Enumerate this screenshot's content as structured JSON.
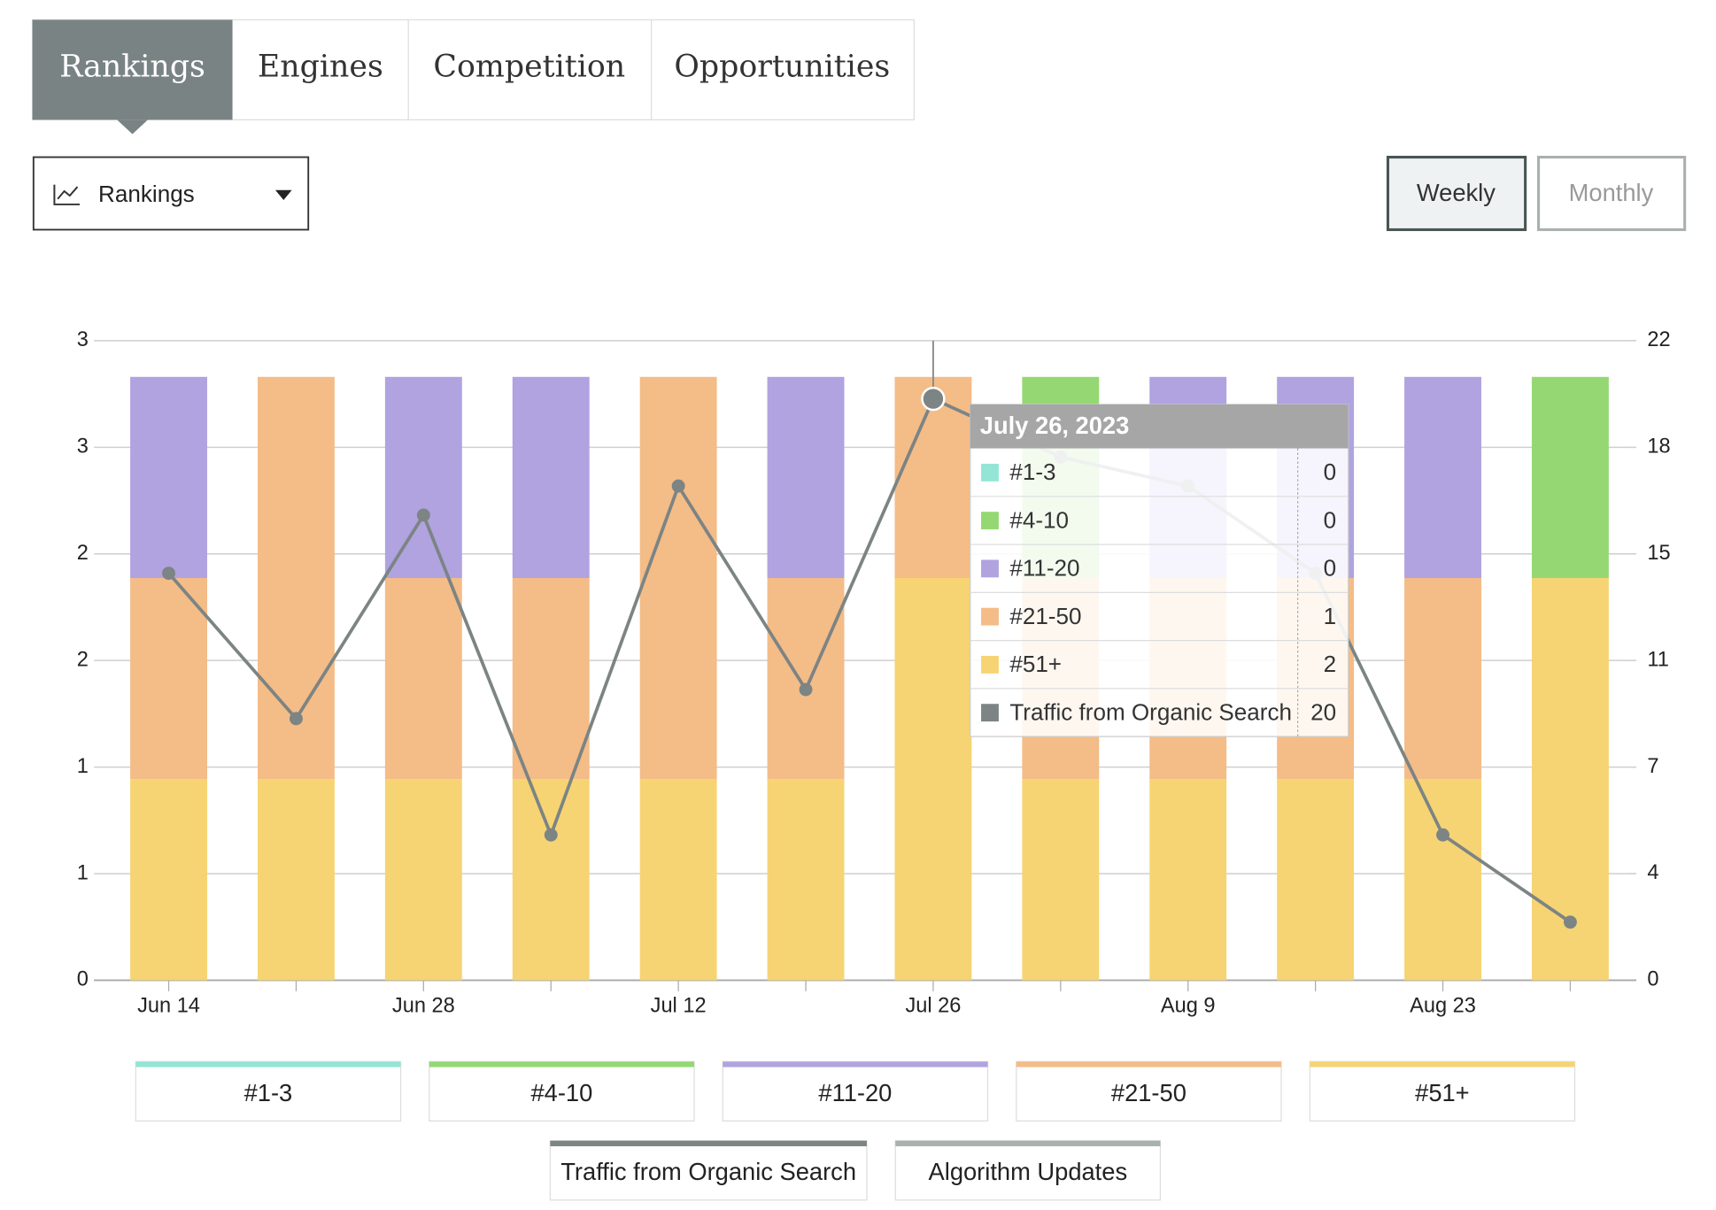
{
  "ui": {
    "tabs": [
      "Rankings",
      "Engines",
      "Competition",
      "Opportunities"
    ],
    "dropdown": "Rankings",
    "buttons": [
      "Weekly",
      "Monthly"
    ]
  },
  "chart_data": {
    "type": "bar",
    "categories": [
      "Jun 14",
      null,
      "Jun 28",
      null,
      "Jul 12",
      null,
      "Jul 26",
      null,
      "Aug 9",
      null,
      "Aug 23",
      null
    ],
    "series": [
      {
        "name": "#1-3",
        "color": "#93e5d6",
        "values": [
          0,
          0,
          0,
          0,
          0,
          0,
          0,
          0,
          0,
          0,
          0,
          0
        ]
      },
      {
        "name": "#4-10",
        "color": "#95d873",
        "values": [
          0,
          0,
          0,
          0,
          0,
          0,
          0,
          1,
          0,
          0,
          0,
          1
        ]
      },
      {
        "name": "#11-20",
        "color": "#b0a3e0",
        "values": [
          1,
          0,
          1,
          1,
          0,
          1,
          0,
          0,
          1,
          1,
          1,
          0
        ]
      },
      {
        "name": "#21-50",
        "color": "#f4bc87",
        "values": [
          1,
          2,
          1,
          1,
          2,
          1,
          1,
          1,
          1,
          1,
          1,
          0
        ]
      },
      {
        "name": "#51+",
        "color": "#f6d473",
        "values": [
          1,
          1,
          1,
          1,
          1,
          1,
          2,
          1,
          1,
          1,
          1,
          2
        ]
      },
      {
        "name": "Traffic from Organic Search",
        "color": "#7c8484",
        "type": "line",
        "axis": "y2",
        "values": [
          14,
          9,
          16,
          5,
          17,
          10,
          20,
          18,
          17,
          14,
          5,
          2
        ]
      }
    ],
    "legend_extra": [
      {
        "name": "Algorithm Updates",
        "color": "#a9b0b0"
      }
    ],
    "ylim": [
      0,
      3.18
    ],
    "yticks": [
      0,
      {
        "value": 0.53,
        "label": "1"
      },
      {
        "value": 1.06,
        "label": "1"
      },
      {
        "value": 1.59,
        "label": "2"
      },
      {
        "value": 2.12,
        "label": "2"
      },
      {
        "value": 2.65,
        "label": "3"
      },
      {
        "value": 3.18,
        "label": "3"
      }
    ],
    "y2lim": [
      0,
      22
    ],
    "y2ticks": [
      0,
      {
        "value": 3.67,
        "label": "4"
      },
      {
        "value": 7.33,
        "label": "7"
      },
      11,
      {
        "value": 14.67,
        "label": "15"
      },
      {
        "value": 18.33,
        "label": "18"
      },
      22
    ],
    "grid": true,
    "tooltip": {
      "title": "July 26, 2023"
    }
  }
}
